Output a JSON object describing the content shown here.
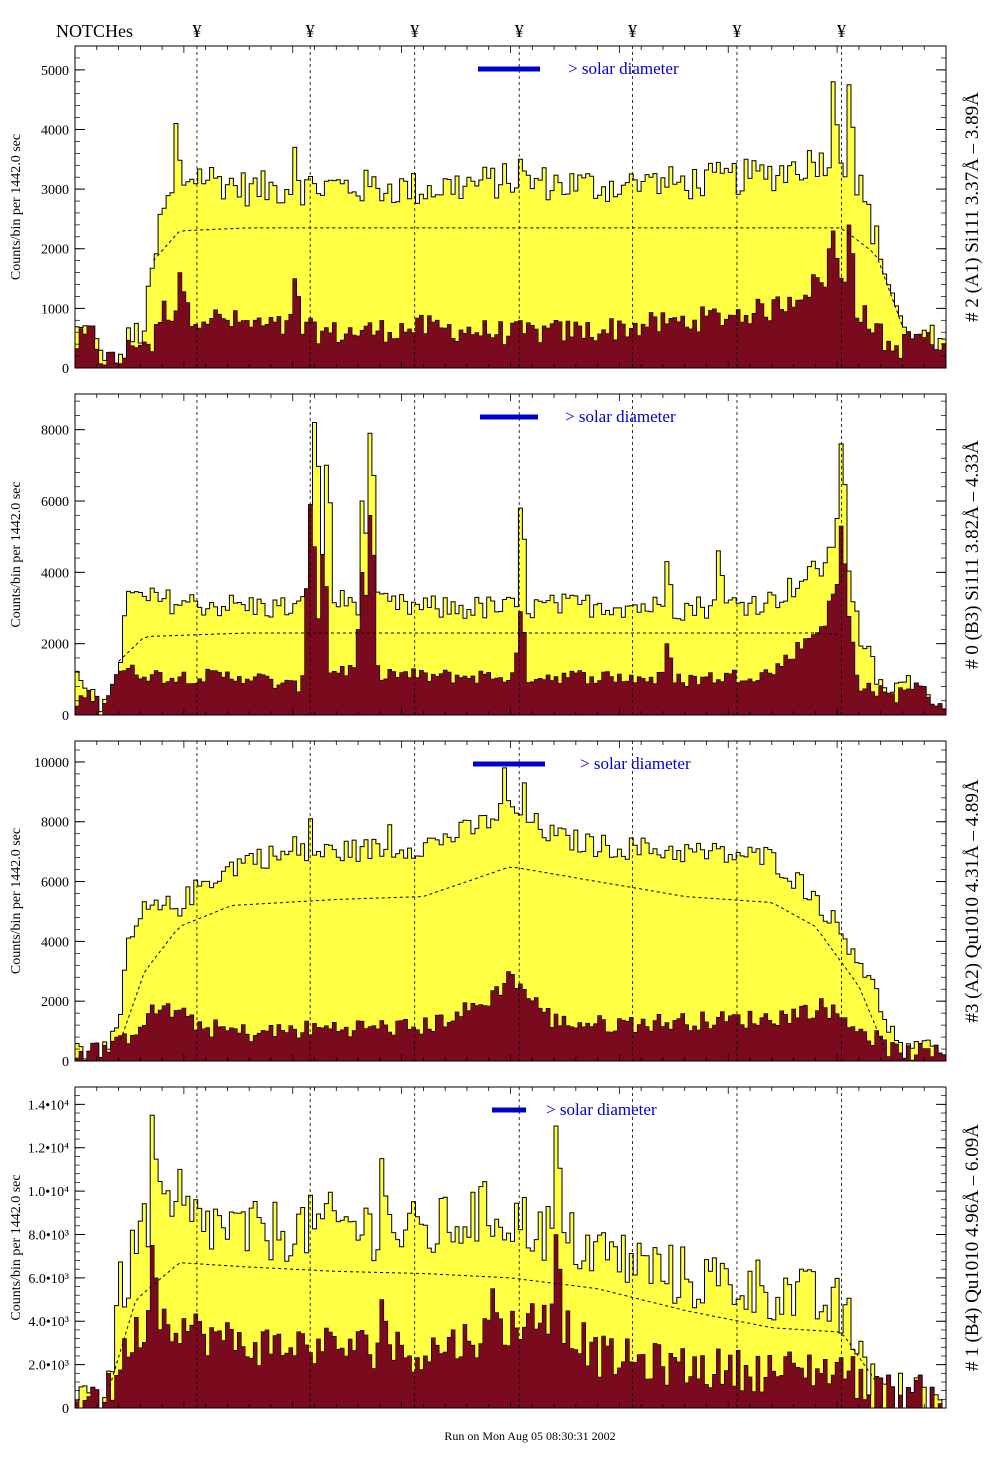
{
  "header": {
    "notches_label": "NOTCHes",
    "notch_symbol": "¥",
    "footer": "Run on Mon Aug 05 08:30:31 2002"
  },
  "colors": {
    "fill": "#ffff44",
    "lower": "#7a0a1e",
    "outline": "#000000",
    "accent": "#0000cc"
  },
  "chart_data": [
    {
      "type": "area",
      "ylabel": "Counts/bin per   1442.0 sec",
      "side_label": "# 2 (A1) Si111  3.37Å – 3.89Å",
      "annotation": "> solar diameter",
      "ylim": [
        0,
        5400
      ],
      "yticks": [
        0,
        1000,
        2000,
        3000,
        4000,
        5000
      ],
      "tick_labels": [
        "0",
        "1000",
        "2000",
        "3000",
        "4000",
        "5000"
      ],
      "notches": [
        0.14,
        0.27,
        0.39,
        0.51,
        0.64,
        0.76,
        0.88
      ],
      "upper_profile": [
        [
          0,
          600
        ],
        [
          0.02,
          600
        ],
        [
          0.03,
          100
        ],
        [
          0.05,
          0
        ],
        [
          0.06,
          400
        ],
        [
          0.08,
          700
        ],
        [
          0.1,
          2600
        ],
        [
          0.12,
          3100
        ],
        [
          0.14,
          3250
        ],
        [
          0.2,
          3000
        ],
        [
          0.3,
          3050
        ],
        [
          0.4,
          3000
        ],
        [
          0.5,
          3150
        ],
        [
          0.6,
          3050
        ],
        [
          0.7,
          3100
        ],
        [
          0.8,
          3250
        ],
        [
          0.88,
          3600
        ],
        [
          0.9,
          3100
        ],
        [
          0.94,
          1200
        ],
        [
          0.96,
          300
        ],
        [
          0.98,
          500
        ],
        [
          1.0,
          200
        ]
      ],
      "upper_noise": 300,
      "lower_profile": [
        [
          0,
          300
        ],
        [
          0.02,
          500
        ],
        [
          0.03,
          100
        ],
        [
          0.05,
          0
        ],
        [
          0.07,
          400
        ],
        [
          0.09,
          300
        ],
        [
          0.1,
          900
        ],
        [
          0.2,
          650
        ],
        [
          0.3,
          500
        ],
        [
          0.4,
          600
        ],
        [
          0.5,
          500
        ],
        [
          0.6,
          550
        ],
        [
          0.7,
          700
        ],
        [
          0.8,
          900
        ],
        [
          0.87,
          1500
        ],
        [
          0.9,
          900
        ],
        [
          0.94,
          200
        ],
        [
          0.97,
          500
        ],
        [
          1.0,
          100
        ]
      ],
      "lower_noise": 300,
      "smooth_profile": [
        [
          0.09,
          1800
        ],
        [
          0.12,
          2300
        ],
        [
          0.2,
          2350
        ],
        [
          0.5,
          2350
        ],
        [
          0.88,
          2350
        ],
        [
          0.92,
          1900
        ],
        [
          0.95,
          700
        ]
      ],
      "upper_peaks": [
        [
          0.115,
          4100
        ],
        [
          0.25,
          3700
        ],
        [
          0.51,
          3500
        ],
        [
          0.66,
          3200
        ],
        [
          0.87,
          4800
        ],
        [
          0.89,
          4750
        ]
      ],
      "lower_peaks": [
        [
          0.12,
          1600
        ],
        [
          0.25,
          1500
        ],
        [
          0.87,
          2300
        ],
        [
          0.89,
          2400
        ],
        [
          0.865,
          2000
        ]
      ]
    },
    {
      "type": "area",
      "ylabel": "Counts/bin per   1442.0 sec",
      "side_label": "# 0 (B3) Si111  3.82Å – 4.33Å",
      "annotation": "> solar diameter",
      "ylim": [
        0,
        9000
      ],
      "yticks": [
        0,
        2000,
        4000,
        6000,
        8000
      ],
      "tick_labels": [
        "0",
        "2000",
        "4000",
        "6000",
        "8000"
      ],
      "notches": [
        0.14,
        0.27,
        0.39,
        0.51,
        0.64,
        0.76,
        0.88
      ],
      "upper_profile": [
        [
          0,
          900
        ],
        [
          0.02,
          900
        ],
        [
          0.03,
          300
        ],
        [
          0.04,
          200
        ],
        [
          0.05,
          1200
        ],
        [
          0.06,
          3300
        ],
        [
          0.15,
          3100
        ],
        [
          0.25,
          3000
        ],
        [
          0.3,
          3200
        ],
        [
          0.4,
          3000
        ],
        [
          0.5,
          3000
        ],
        [
          0.6,
          3100
        ],
        [
          0.7,
          3000
        ],
        [
          0.8,
          3200
        ],
        [
          0.86,
          4200
        ],
        [
          0.88,
          5500
        ],
        [
          0.9,
          2300
        ],
        [
          0.93,
          500
        ],
        [
          0.95,
          900
        ],
        [
          1.0,
          200
        ]
      ],
      "upper_noise": 350,
      "lower_profile": [
        [
          0,
          300
        ],
        [
          0.02,
          500
        ],
        [
          0.03,
          100
        ],
        [
          0.05,
          1200
        ],
        [
          0.1,
          1000
        ],
        [
          0.2,
          1000
        ],
        [
          0.25,
          700
        ],
        [
          0.3,
          1200
        ],
        [
          0.4,
          1000
        ],
        [
          0.5,
          1000
        ],
        [
          0.6,
          1000
        ],
        [
          0.7,
          900
        ],
        [
          0.8,
          1100
        ],
        [
          0.86,
          2500
        ],
        [
          0.88,
          4000
        ],
        [
          0.9,
          800
        ],
        [
          0.94,
          400
        ],
        [
          0.96,
          800
        ],
        [
          1.0,
          100
        ]
      ],
      "lower_noise": 300,
      "smooth_profile": [
        [
          0.05,
          1500
        ],
        [
          0.08,
          2200
        ],
        [
          0.2,
          2300
        ],
        [
          0.5,
          2300
        ],
        [
          0.85,
          2300
        ],
        [
          0.88,
          2250
        ]
      ],
      "upper_peaks": [
        [
          0.275,
          8200
        ],
        [
          0.29,
          7000
        ],
        [
          0.34,
          7900
        ],
        [
          0.33,
          6000
        ],
        [
          0.51,
          5800
        ],
        [
          0.68,
          4300
        ],
        [
          0.74,
          4600
        ],
        [
          0.88,
          7600
        ]
      ],
      "lower_peaks": [
        [
          0.27,
          5900
        ],
        [
          0.285,
          4500
        ],
        [
          0.34,
          5600
        ],
        [
          0.33,
          4000
        ],
        [
          0.51,
          2900
        ],
        [
          0.68,
          2000
        ],
        [
          0.88,
          5300
        ]
      ]
    },
    {
      "type": "area",
      "ylabel": "Counts/bin per   1442.0 sec",
      "side_label": "#3 (A2) Qu1010  4.31Å – 4.89Å",
      "annotation": "> solar diameter",
      "ylim": [
        0,
        10700
      ],
      "yticks": [
        0,
        2000,
        4000,
        6000,
        8000,
        10000
      ],
      "tick_labels": [
        "0",
        "2000",
        "4000",
        "6000",
        "8000",
        "10000"
      ],
      "notches": [
        0.14,
        0.27,
        0.39,
        0.51,
        0.64,
        0.76,
        0.88
      ],
      "upper_profile": [
        [
          0,
          400
        ],
        [
          0.03,
          200
        ],
        [
          0.05,
          800
        ],
        [
          0.06,
          3800
        ],
        [
          0.08,
          5000
        ],
        [
          0.12,
          5200
        ],
        [
          0.15,
          6000
        ],
        [
          0.2,
          6800
        ],
        [
          0.3,
          7000
        ],
        [
          0.4,
          7200
        ],
        [
          0.46,
          7800
        ],
        [
          0.5,
          8500
        ],
        [
          0.55,
          7500
        ],
        [
          0.6,
          7200
        ],
        [
          0.7,
          7000
        ],
        [
          0.8,
          6800
        ],
        [
          0.85,
          5500
        ],
        [
          0.9,
          3500
        ],
        [
          0.95,
          200
        ],
        [
          1.0,
          400
        ]
      ],
      "upper_noise": 400,
      "lower_profile": [
        [
          0,
          100
        ],
        [
          0.05,
          400
        ],
        [
          0.08,
          1300
        ],
        [
          0.1,
          1700
        ],
        [
          0.15,
          1000
        ],
        [
          0.2,
          800
        ],
        [
          0.3,
          1000
        ],
        [
          0.4,
          1000
        ],
        [
          0.47,
          1800
        ],
        [
          0.5,
          2700
        ],
        [
          0.55,
          1200
        ],
        [
          0.6,
          1100
        ],
        [
          0.7,
          1200
        ],
        [
          0.8,
          1300
        ],
        [
          0.86,
          1700
        ],
        [
          0.9,
          1000
        ],
        [
          0.94,
          200
        ],
        [
          1.0,
          100
        ]
      ],
      "lower_noise": 450,
      "smooth_profile": [
        [
          0.05,
          500
        ],
        [
          0.08,
          3000
        ],
        [
          0.12,
          4500
        ],
        [
          0.18,
          5200
        ],
        [
          0.3,
          5400
        ],
        [
          0.4,
          5500
        ],
        [
          0.5,
          6500
        ],
        [
          0.6,
          6000
        ],
        [
          0.7,
          5500
        ],
        [
          0.8,
          5300
        ],
        [
          0.85,
          4500
        ],
        [
          0.9,
          2500
        ],
        [
          0.93,
          400
        ]
      ],
      "upper_peaks": [
        [
          0.495,
          9800
        ],
        [
          0.515,
          9300
        ],
        [
          0.27,
          8100
        ],
        [
          0.25,
          7500
        ],
        [
          0.36,
          7900
        ]
      ],
      "lower_peaks": [
        [
          0.5,
          2900
        ]
      ]
    },
    {
      "type": "area",
      "ylabel": "Counts/bin per   1442.0 sec",
      "side_label": "# 1 (B4) Qu1010  4.96Å – 6.09Å",
      "annotation": "> solar diameter",
      "ylim": [
        0,
        14800
      ],
      "yticks": [
        0,
        2000,
        4000,
        6000,
        8000,
        10000,
        12000,
        14000
      ],
      "tick_labels": [
        "0",
        "2.0•10³",
        "4.0•10³",
        "6.0•10³",
        "8.0•10³",
        "1.0•10⁴",
        "1.2•10⁴",
        "1.4•10⁴"
      ],
      "notches": [
        0.14,
        0.27,
        0.39,
        0.51,
        0.64,
        0.76,
        0.88
      ],
      "upper_profile": [
        [
          0,
          500
        ],
        [
          0.02,
          400
        ],
        [
          0.03,
          200
        ],
        [
          0.04,
          1500
        ],
        [
          0.05,
          5000
        ],
        [
          0.08,
          8500
        ],
        [
          0.1,
          9000
        ],
        [
          0.15,
          8500
        ],
        [
          0.2,
          8000
        ],
        [
          0.3,
          8500
        ],
        [
          0.4,
          8000
        ],
        [
          0.47,
          9000
        ],
        [
          0.5,
          8800
        ],
        [
          0.55,
          8000
        ],
        [
          0.6,
          7200
        ],
        [
          0.7,
          6000
        ],
        [
          0.8,
          5500
        ],
        [
          0.88,
          4500
        ],
        [
          0.92,
          1000
        ],
        [
          0.95,
          200
        ],
        [
          1.0,
          300
        ]
      ],
      "upper_noise": 1500,
      "lower_profile": [
        [
          0,
          300
        ],
        [
          0.04,
          300
        ],
        [
          0.06,
          2500
        ],
        [
          0.09,
          4000
        ],
        [
          0.15,
          3000
        ],
        [
          0.2,
          2500
        ],
        [
          0.3,
          2500
        ],
        [
          0.4,
          2200
        ],
        [
          0.47,
          3000
        ],
        [
          0.55,
          4000
        ],
        [
          0.6,
          2000
        ],
        [
          0.7,
          1500
        ],
        [
          0.8,
          1300
        ],
        [
          0.88,
          1500
        ],
        [
          0.92,
          300
        ],
        [
          1.0,
          100
        ]
      ],
      "lower_noise": 1400,
      "smooth_profile": [
        [
          0.04,
          1000
        ],
        [
          0.07,
          5000
        ],
        [
          0.12,
          6700
        ],
        [
          0.2,
          6500
        ],
        [
          0.3,
          6300
        ],
        [
          0.4,
          6200
        ],
        [
          0.5,
          6000
        ],
        [
          0.6,
          5500
        ],
        [
          0.7,
          4500
        ],
        [
          0.8,
          3700
        ],
        [
          0.88,
          3500
        ],
        [
          0.92,
          1200
        ]
      ],
      "upper_peaks": [
        [
          0.09,
          13500
        ],
        [
          0.55,
          13000
        ],
        [
          0.12,
          11000
        ],
        [
          0.35,
          11500
        ]
      ],
      "lower_peaks": [
        [
          0.09,
          7500
        ],
        [
          0.55,
          8000
        ],
        [
          0.35,
          5000
        ],
        [
          0.48,
          5500
        ]
      ]
    }
  ]
}
